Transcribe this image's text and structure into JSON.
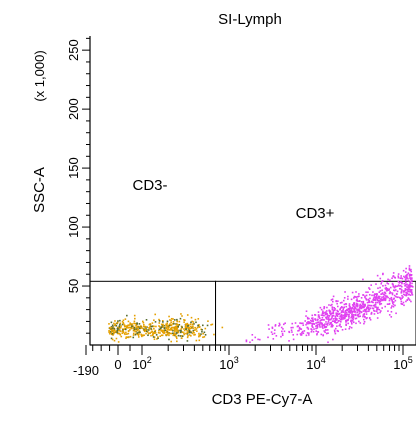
{
  "chart_data": {
    "type": "scatter",
    "title": "SI-Lymph",
    "xlabel": "CD3 PE-Cy7-A",
    "ylabel": "SSC-A",
    "y_multiplier_label": "(x 1,000)",
    "x_scale": "biexponential",
    "xlim": [
      -190,
      150000
    ],
    "ylim": [
      0,
      262
    ],
    "x_ticks": [
      {
        "value": -190,
        "label": "-190"
      },
      {
        "value": 0,
        "label": "0"
      },
      {
        "value": 100,
        "label": "10",
        "exponent": "2"
      },
      {
        "value": 1000,
        "label": "10",
        "exponent": "3"
      },
      {
        "value": 10000,
        "label": "10",
        "exponent": "4"
      },
      {
        "value": 100000,
        "label": "10",
        "exponent": "5"
      }
    ],
    "y_ticks": [
      {
        "value": 50,
        "label": "50"
      },
      {
        "value": 100,
        "label": "100"
      },
      {
        "value": 150,
        "label": "150"
      },
      {
        "value": 200,
        "label": "200"
      },
      {
        "value": 250,
        "label": "250"
      }
    ],
    "gates": [
      {
        "name": "CD3-",
        "x_range": [
          -190,
          700
        ],
        "y_range": [
          0,
          54
        ],
        "label_value": "CD3-"
      },
      {
        "name": "CD3+",
        "x_range": [
          700,
          150000
        ],
        "y_range": [
          0,
          54
        ],
        "label_value": "CD3+"
      }
    ],
    "series": [
      {
        "name": "CD3-",
        "color": "#e5a000",
        "dark_color": "#556b2f",
        "x_center": 120,
        "x_spread": 180,
        "y_center": 14,
        "y_spread": 4,
        "count": 650
      },
      {
        "name": "CD3+",
        "color": "#e040f0",
        "x_center": 30000,
        "x_spread": 0.55,
        "y_center": 18,
        "y_spread": 9,
        "count": 900
      }
    ],
    "grid": false,
    "legend": "none"
  },
  "colors": {
    "axis": "#000000",
    "gate": "#000000",
    "cd3_neg": "#e5a000",
    "cd3_pos": "#e040f0"
  }
}
